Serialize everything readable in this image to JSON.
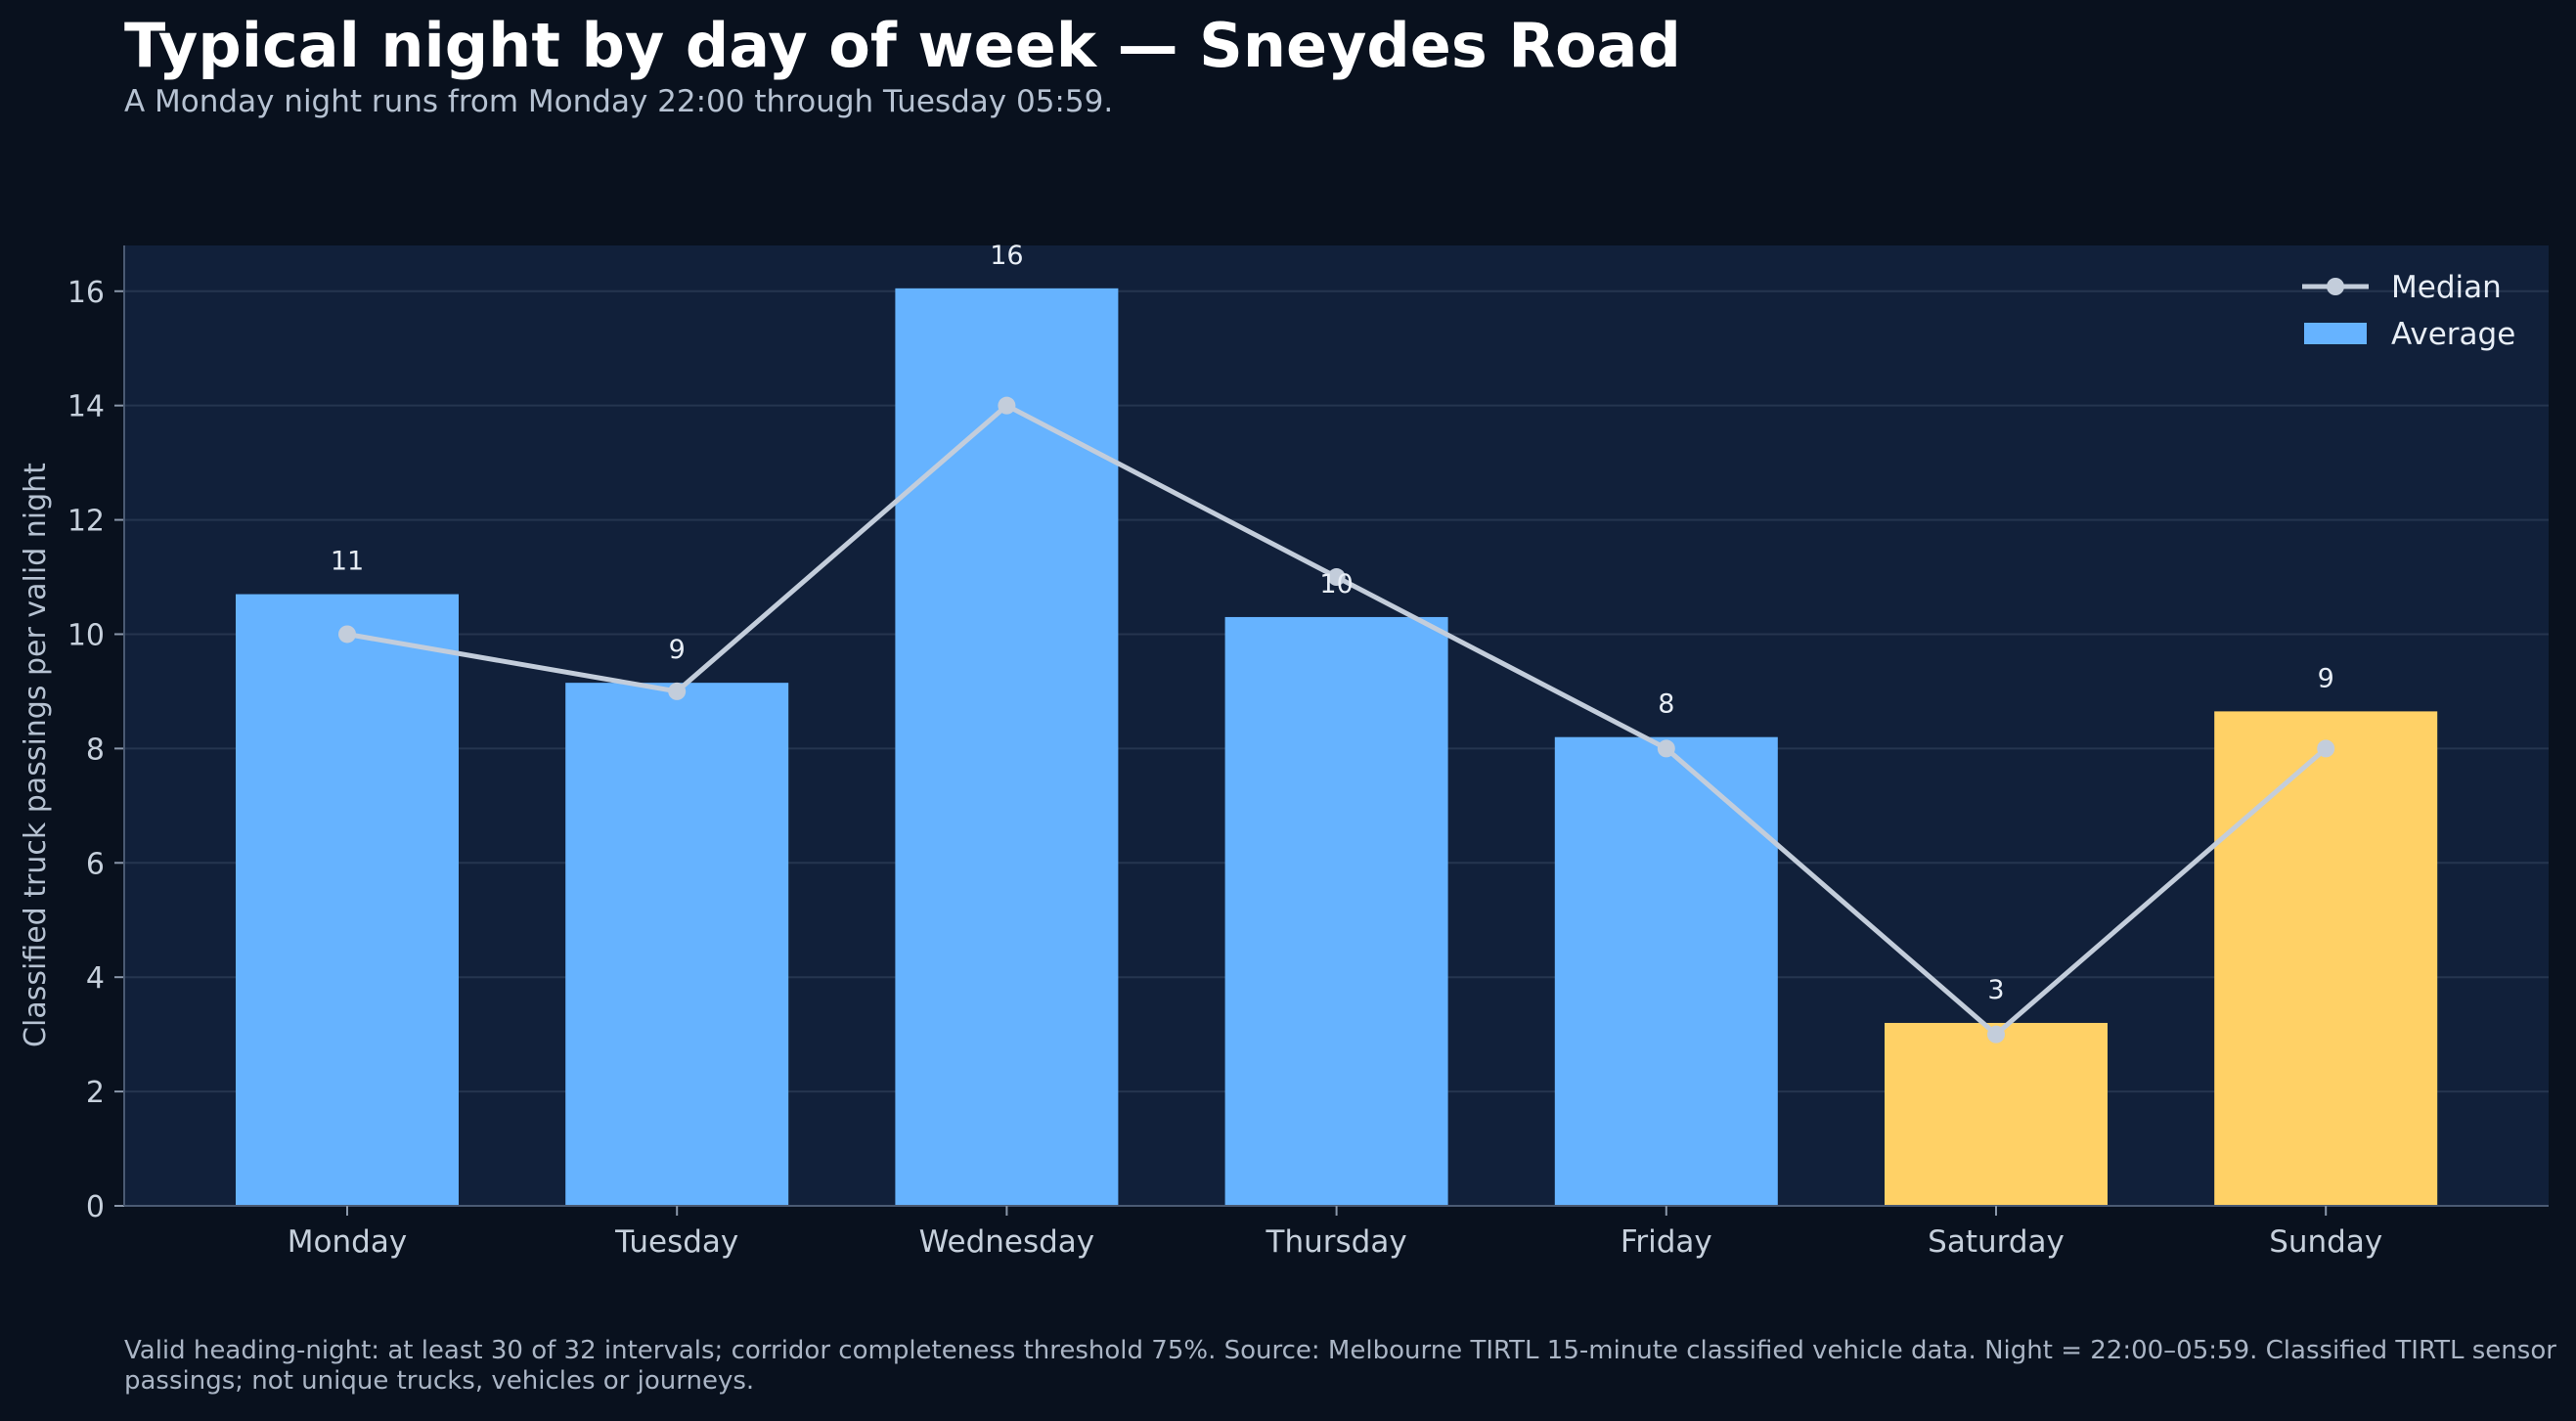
{
  "title": "Typical night by day of week — Sneydes Road",
  "subtitle": "A Monday night runs from Monday 22:00 through Tuesday 05:59.",
  "footer": "Valid heading-night: at least 30 of 32 intervals; corridor completeness threshold 75%. Source: Melbourne TIRTL 15-minute classified vehicle data. Night = 22:00–05:59. Classified TIRTL sensor passings; not unique trucks, vehicles or journeys.",
  "chart_data": {
    "type": "bar",
    "categories": [
      "Monday",
      "Tuesday",
      "Wednesday",
      "Thursday",
      "Friday",
      "Saturday",
      "Sunday"
    ],
    "series": [
      {
        "name": "Average",
        "type": "bar",
        "values": [
          10.7,
          9.15,
          16.05,
          10.3,
          8.2,
          3.2,
          8.65
        ],
        "labels": [
          "11",
          "9",
          "16",
          "10",
          "8",
          "3",
          "9"
        ],
        "colors": [
          "#66b3ff",
          "#66b3ff",
          "#66b3ff",
          "#66b3ff",
          "#66b3ff",
          "#ffd166",
          "#ffd166"
        ]
      },
      {
        "name": "Median",
        "type": "line",
        "values": [
          10,
          9,
          14,
          11,
          8,
          3,
          8
        ],
        "color": "#c3cddb"
      }
    ],
    "ylabel": "Classified truck passings per valid night",
    "xlabel": "",
    "ylim": [
      0,
      16.8
    ],
    "yticks": [
      0,
      2,
      4,
      6,
      8,
      10,
      12,
      14,
      16
    ],
    "grid": true,
    "legend": "top-right",
    "colors": {
      "plot_background": "#11203a",
      "page_background": "#09111e",
      "weekday_bar": "#66b3ff",
      "weekend_bar": "#ffd166",
      "median_line": "#c3cddb",
      "gridline": "#25354f"
    }
  }
}
